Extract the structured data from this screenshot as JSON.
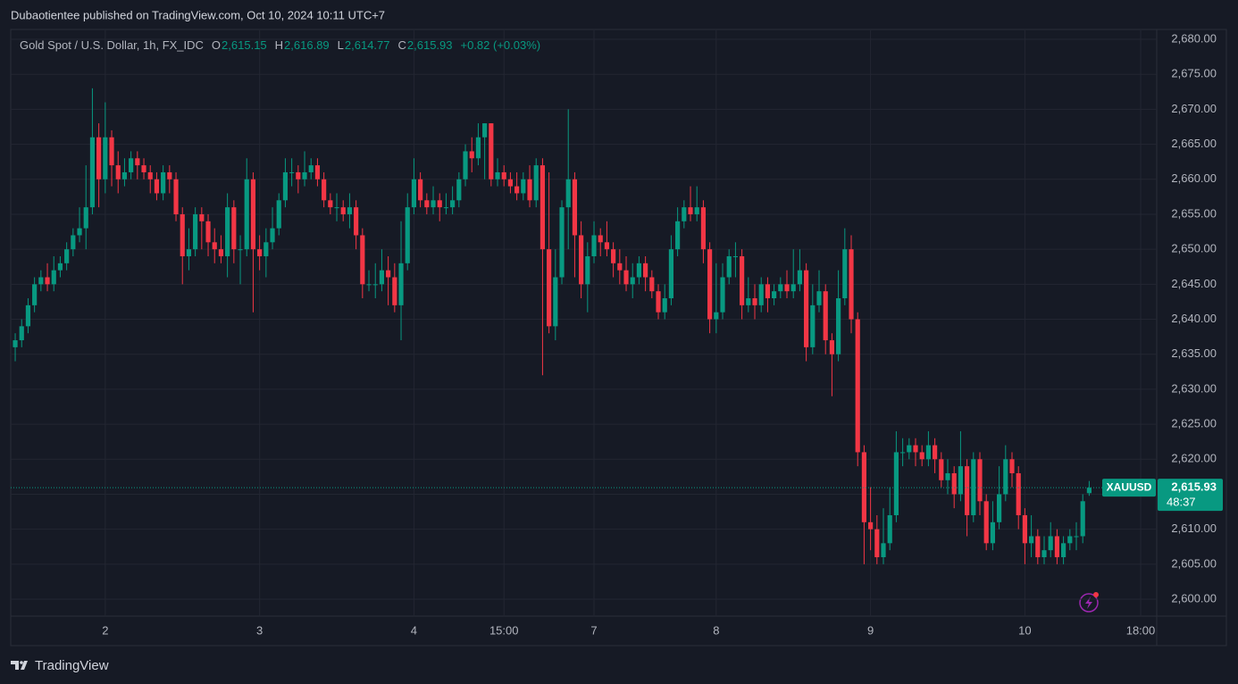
{
  "header": "Dubaotientee published on TradingView.com, Oct 10, 2024 10:11 UTC+7",
  "footer": "TradingView",
  "chart_data": {
    "type": "candlestick",
    "legend": {
      "name": "Gold Spot / U.S. Dollar, 1h, FX_IDC",
      "items": [
        {
          "key": "O",
          "value": "2,615.15"
        },
        {
          "key": "H",
          "value": "2,616.89"
        },
        {
          "key": "L",
          "value": "2,614.77"
        },
        {
          "key": "C",
          "value": "2,615.93"
        }
      ],
      "change": "+0.82 (+0.03%)"
    },
    "symbol": "XAUUSD",
    "last_price": {
      "value": 2615.93,
      "label": "2,615.93"
    },
    "countdown": "48:37",
    "up_color": "#089981",
    "down_color": "#f23645",
    "grid": true,
    "xlim": [
      -0.7,
      177.5
    ],
    "xticks": [
      {
        "value": 14,
        "label": "2"
      },
      {
        "value": 38,
        "label": "3"
      },
      {
        "value": 62,
        "label": "4"
      },
      {
        "value": 76,
        "label": "15:00"
      },
      {
        "value": 90,
        "label": "7"
      },
      {
        "value": 109,
        "label": "8"
      },
      {
        "value": 133,
        "label": "9"
      },
      {
        "value": 157,
        "label": "10"
      },
      {
        "value": 175,
        "label": "18:00"
      }
    ],
    "ylim": [
      2597.58,
      2681.28
    ],
    "yticks": [
      {
        "value": 2600,
        "label": "2,600.00"
      },
      {
        "value": 2605,
        "label": "2,605.00"
      },
      {
        "value": 2610,
        "label": "2,610.00"
      },
      {
        "value": 2615,
        "label": "2,615.00"
      },
      {
        "value": 2620,
        "label": "2,620.00"
      },
      {
        "value": 2625,
        "label": "2,625.00"
      },
      {
        "value": 2630,
        "label": "2,630.00"
      },
      {
        "value": 2635,
        "label": "2,635.00"
      },
      {
        "value": 2640,
        "label": "2,640.00"
      },
      {
        "value": 2645,
        "label": "2,645.00"
      },
      {
        "value": 2650,
        "label": "2,650.00"
      },
      {
        "value": 2655,
        "label": "2,655.00"
      },
      {
        "value": 2660,
        "label": "2,660.00"
      },
      {
        "value": 2665,
        "label": "2,665.00"
      },
      {
        "value": 2670,
        "label": "2,670.00"
      },
      {
        "value": 2675,
        "label": "2,675.00"
      },
      {
        "value": 2680,
        "label": "2,680.00"
      }
    ],
    "open": [
      2636,
      2637,
      2639,
      2642,
      2645,
      2646,
      2645,
      2647,
      2648,
      2650,
      2652,
      2653,
      2656,
      2666,
      2660,
      2666,
      2662,
      2660,
      2661,
      2663,
      2662,
      2661,
      2660,
      2658,
      2661,
      2660,
      2655,
      2649,
      2650,
      2655,
      2654,
      2651,
      2650,
      2649,
      2656,
      2650,
      2650,
      2660,
      2650,
      2649,
      2651,
      2653,
      2657,
      2661,
      2661,
      2660,
      2661,
      2662,
      2660,
      2657,
      2656,
      2656,
      2655,
      2656,
      2652,
      2645,
      2645,
      2645,
      2647,
      2646,
      2642,
      2648,
      2656,
      2660,
      2657,
      2656,
      2657,
      2656,
      2656,
      2657,
      2660,
      2664,
      2663,
      2666,
      2668,
      2660,
      2661,
      2660,
      2659,
      2658,
      2660,
      2657,
      2662,
      2650,
      2639,
      2646,
      2656,
      2660,
      2652,
      2645,
      2649,
      2652,
      2651,
      2650,
      2648,
      2647,
      2645,
      2646,
      2648,
      2646,
      2644,
      2641,
      2643,
      2650,
      2654,
      2656,
      2655,
      2656,
      2650,
      2640,
      2641,
      2646,
      2649,
      2649,
      2642,
      2643,
      2642,
      2645,
      2643,
      2644,
      2645,
      2644,
      2645,
      2647,
      2636,
      2642,
      2644,
      2637,
      2635,
      2643,
      2650,
      2640,
      2621,
      2611,
      2610,
      2606,
      2608,
      2612,
      2621,
      2621,
      2622,
      2621,
      2620,
      2622,
      2620,
      2617,
      2618,
      2615,
      2619,
      2612,
      2620,
      2614,
      2608,
      2611,
      2615,
      2620,
      2618,
      2612,
      2608,
      2609,
      2606,
      2607,
      2609,
      2606,
      2608,
      2609,
      2609,
      2615.15
    ],
    "high": [
      2638,
      2640,
      2643,
      2646,
      2647,
      2648,
      2649,
      2649,
      2651,
      2653,
      2656,
      2662,
      2673,
      2668,
      2671,
      2667,
      2664,
      2663,
      2664,
      2664,
      2663,
      2662,
      2661,
      2662,
      2662,
      2661,
      2656,
      2653,
      2656,
      2656,
      2655,
      2653,
      2652,
      2658,
      2657,
      2652,
      2663,
      2661,
      2652,
      2653,
      2656,
      2658,
      2663,
      2663,
      2662,
      2664,
      2663,
      2663,
      2661,
      2658,
      2658,
      2657,
      2658,
      2657,
      2653,
      2647,
      2648,
      2650,
      2649,
      2648,
      2654,
      2658,
      2663,
      2661,
      2658,
      2659,
      2658,
      2658,
      2659,
      2661,
      2665,
      2666,
      2668,
      2668,
      2668,
      2663,
      2662,
      2661,
      2661,
      2661,
      2662,
      2663,
      2663,
      2661,
      2650,
      2657,
      2670,
      2661,
      2654,
      2651,
      2654,
      2653,
      2654,
      2651,
      2650,
      2649,
      2648,
      2649,
      2649,
      2647,
      2645,
      2645,
      2652,
      2656,
      2657,
      2659,
      2659,
      2657,
      2651,
      2648,
      2648,
      2650,
      2651,
      2650,
      2646,
      2645,
      2646,
      2646,
      2645,
      2646,
      2647,
      2650,
      2650,
      2648,
      2645,
      2647,
      2645,
      2638,
      2647,
      2653,
      2652,
      2641,
      2622,
      2616,
      2612,
      2613,
      2616,
      2624,
      2623,
      2623,
      2623,
      2622,
      2624,
      2623,
      2621,
      2620,
      2619,
      2624,
      2620,
      2621,
      2621,
      2615,
      2614,
      2619,
      2622,
      2621,
      2619,
      2613,
      2612,
      2610,
      2609,
      2611,
      2610,
      2609,
      2610,
      2611,
      2615,
      2616.89
    ],
    "low": [
      2634,
      2636,
      2638,
      2641,
      2644,
      2644,
      2644,
      2646,
      2647,
      2649,
      2651,
      2650,
      2655,
      2656,
      2658,
      2659,
      2658,
      2659,
      2660,
      2660,
      2660,
      2658,
      2657,
      2657,
      2658,
      2654,
      2645,
      2647,
      2649,
      2650,
      2649,
      2648,
      2648,
      2646,
      2648,
      2645,
      2649,
      2641,
      2647,
      2646,
      2650,
      2652,
      2656,
      2659,
      2658,
      2659,
      2660,
      2659,
      2656,
      2655,
      2654,
      2654,
      2653,
      2650,
      2643,
      2644,
      2643,
      2644,
      2642,
      2641,
      2637,
      2647,
      2655,
      2656,
      2655,
      2655,
      2654,
      2655,
      2655,
      2656,
      2659,
      2661,
      2662,
      2660,
      2659,
      2659,
      2659,
      2658,
      2657,
      2657,
      2656,
      2656,
      2632,
      2638,
      2637,
      2645,
      2650,
      2646,
      2643,
      2641,
      2648,
      2649,
      2649,
      2646,
      2645,
      2644,
      2643,
      2645,
      2644,
      2643,
      2640,
      2640,
      2642,
      2649,
      2653,
      2654,
      2654,
      2648,
      2638,
      2638,
      2640,
      2645,
      2646,
      2640,
      2641,
      2640,
      2641,
      2641,
      2642,
      2643,
      2643,
      2643,
      2644,
      2634,
      2635,
      2641,
      2635,
      2629,
      2634,
      2642,
      2638,
      2619,
      2605,
      2607,
      2605,
      2605,
      2607,
      2611,
      2619,
      2620,
      2619,
      2619,
      2619,
      2618,
      2616,
      2615,
      2613,
      2614,
      2609,
      2611,
      2612,
      2607,
      2607,
      2610,
      2614,
      2616,
      2610,
      2605,
      2606,
      2605,
      2605,
      2606,
      2605,
      2605,
      2607,
      2607,
      2608,
      2614.77
    ],
    "close": [
      2637,
      2639,
      2642,
      2645,
      2646,
      2645,
      2647,
      2648,
      2650,
      2652,
      2653,
      2656,
      2666,
      2660,
      2666,
      2662,
      2660,
      2661,
      2663,
      2662,
      2661,
      2660,
      2658,
      2661,
      2660,
      2655,
      2649,
      2650,
      2655,
      2654,
      2651,
      2650,
      2649,
      2656,
      2650,
      2650,
      2660,
      2650,
      2649,
      2651,
      2653,
      2657,
      2661,
      2661,
      2660,
      2661,
      2662,
      2660,
      2657,
      2656,
      2656,
      2655,
      2656,
      2652,
      2645,
      2645,
      2645,
      2647,
      2646,
      2642,
      2648,
      2656,
      2660,
      2657,
      2656,
      2657,
      2656,
      2656,
      2657,
      2660,
      2664,
      2663,
      2666,
      2668,
      2660,
      2661,
      2660,
      2659,
      2658,
      2660,
      2657,
      2662,
      2650,
      2639,
      2646,
      2656,
      2660,
      2652,
      2645,
      2649,
      2652,
      2651,
      2650,
      2648,
      2647,
      2645,
      2646,
      2648,
      2646,
      2644,
      2641,
      2643,
      2650,
      2654,
      2656,
      2655,
      2656,
      2650,
      2640,
      2641,
      2646,
      2649,
      2649,
      2642,
      2643,
      2642,
      2645,
      2643,
      2644,
      2645,
      2644,
      2645,
      2647,
      2636,
      2642,
      2644,
      2637,
      2635,
      2643,
      2650,
      2640,
      2621,
      2611,
      2610,
      2606,
      2608,
      2612,
      2621,
      2621,
      2622,
      2621,
      2620,
      2622,
      2620,
      2617,
      2618,
      2615,
      2619,
      2612,
      2620,
      2614,
      2608,
      2611,
      2615,
      2620,
      2618,
      2612,
      2608,
      2609,
      2606,
      2607,
      2609,
      2606,
      2608,
      2609,
      2609,
      2614,
      2615.93
    ]
  }
}
